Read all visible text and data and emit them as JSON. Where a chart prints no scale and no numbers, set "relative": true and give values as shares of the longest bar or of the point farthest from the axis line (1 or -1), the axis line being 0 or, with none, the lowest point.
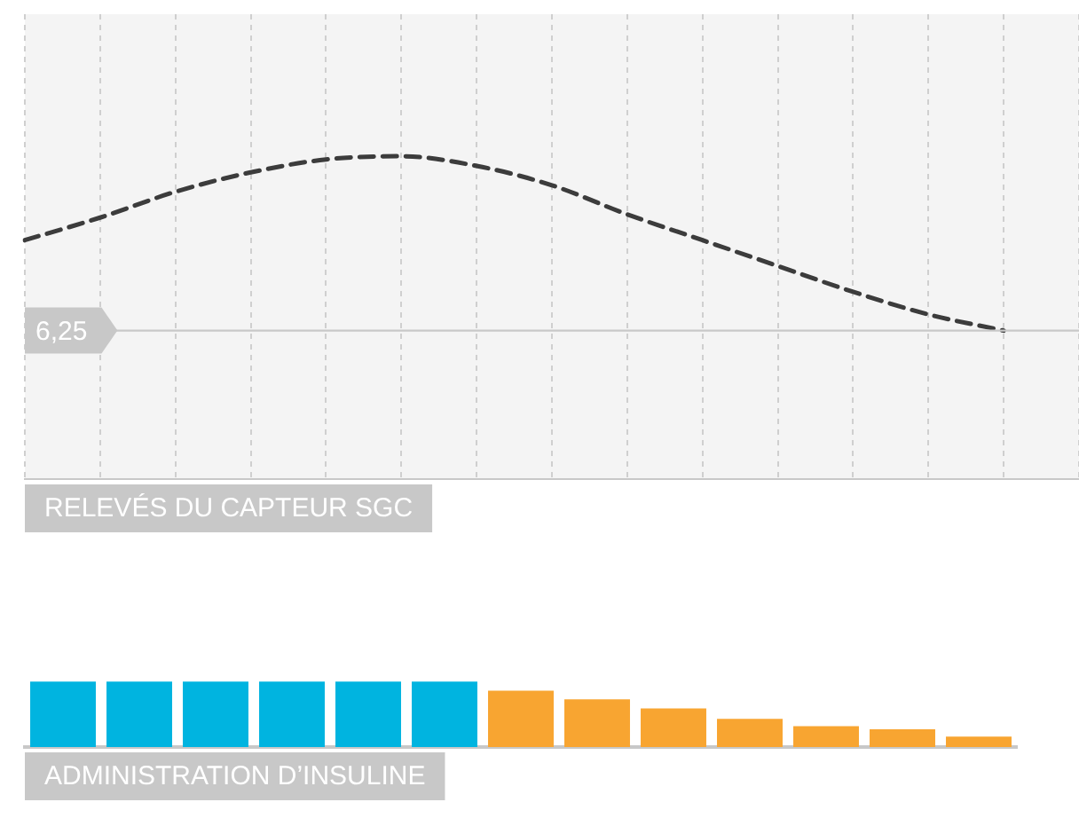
{
  "chart_data": [
    {
      "type": "line",
      "relative": true,
      "xlabel": "RELEVÉS DU CAPTEUR SGC",
      "categories": [
        null,
        null,
        null,
        null,
        null,
        null,
        null,
        null,
        null,
        null,
        null,
        null,
        null,
        null,
        null
      ],
      "series": [
        {
          "color": "#3c3c3c",
          "line_style": "dashed",
          "values": [
            0.74,
            0.81,
            0.89,
            0.95,
            0.99,
            1,
            0.97,
            0.91,
            0.82,
            0.74,
            0.66,
            0.58,
            0.51,
            0.46,
            null
          ]
        }
      ],
      "ref_lines": [
        {
          "axis": "y",
          "value": 0.46,
          "color": "#c8c8c8"
        }
      ],
      "annotations": [
        "6,25"
      ],
      "grid": "x"
    },
    {
      "type": "bar",
      "relative": true,
      "xlabel": "ADMINISTRATION D’INSULINE",
      "categories": [
        null,
        null,
        null,
        null,
        null,
        null,
        null,
        null,
        null,
        null,
        null,
        null,
        null
      ],
      "values": [
        1,
        1,
        1,
        1,
        1,
        1,
        0.86,
        0.73,
        0.59,
        0.43,
        0.32,
        0.27,
        0.16
      ],
      "colors": [
        "#00b4e0",
        "#00b4e0",
        "#00b4e0",
        "#00b4e0",
        "#00b4e0",
        "#00b4e0",
        "#f8a531",
        "#f8a531",
        "#f8a531",
        "#f8a531",
        "#f8a531",
        "#f8a531",
        "#f8a531"
      ]
    }
  ]
}
